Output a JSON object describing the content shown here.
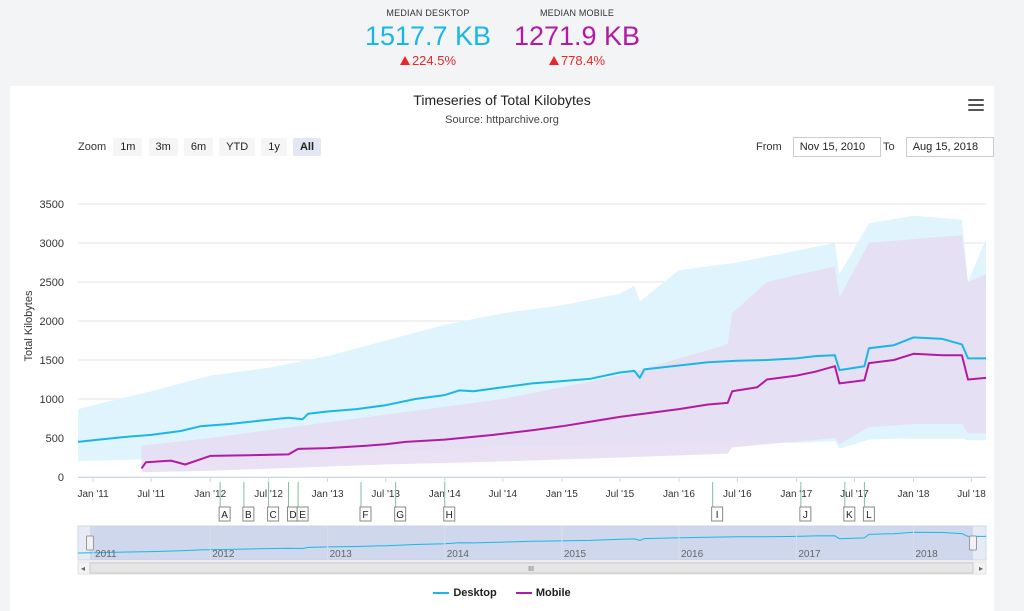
{
  "stats": {
    "desktop": {
      "label": "MEDIAN DESKTOP",
      "value": "1517.7 KB",
      "change": "224.5%"
    },
    "mobile": {
      "label": "MEDIAN MOBILE",
      "value": "1271.9 KB",
      "change": "778.4%"
    }
  },
  "chart_title": "Timeseries of Total Kilobytes",
  "chart_subtitle": "Source: httparchive.org",
  "zoom": {
    "label": "Zoom",
    "buttons": [
      "1m",
      "3m",
      "6m",
      "YTD",
      "1y",
      "All"
    ],
    "selected": "All"
  },
  "range": {
    "from_label": "From",
    "from_value": "Nov 15, 2010",
    "to_label": "To",
    "to_value": "Aug 15, 2018"
  },
  "navigator": {
    "years": [
      "2011",
      "2012",
      "2013",
      "2014",
      "2015",
      "2016",
      "2017",
      "2018"
    ],
    "scroll_grip": "III"
  },
  "colors": {
    "desktop": "#1ab7e6",
    "mobile": "#b31aa3",
    "desktop_band": "#dff4fc",
    "mobile_band": "#e8dcf2",
    "increase": "#e8262b"
  },
  "chart_data": {
    "type": "line",
    "ylabel": "Total Kilobytes",
    "ylim": [
      0,
      3500
    ],
    "yticks": [
      "0",
      "500",
      "1000",
      "1500",
      "2000",
      "2500",
      "3000",
      "3500"
    ],
    "xlim": [
      "2010-11-15",
      "2018-08-15"
    ],
    "xticks": [
      {
        "label": "Jan '11",
        "date": "2011-01-01"
      },
      {
        "label": "Jul '11",
        "date": "2011-07-01"
      },
      {
        "label": "Jan '12",
        "date": "2012-01-01"
      },
      {
        "label": "Jul '12",
        "date": "2012-07-01"
      },
      {
        "label": "Jan '13",
        "date": "2013-01-01"
      },
      {
        "label": "Jul '13",
        "date": "2013-07-01"
      },
      {
        "label": "Jan '14",
        "date": "2014-01-01"
      },
      {
        "label": "Jul '14",
        "date": "2014-07-01"
      },
      {
        "label": "Jan '15",
        "date": "2015-01-01"
      },
      {
        "label": "Jul '15",
        "date": "2015-07-01"
      },
      {
        "label": "Jan '16",
        "date": "2016-01-01"
      },
      {
        "label": "Jul '16",
        "date": "2016-07-01"
      },
      {
        "label": "Jan '17",
        "date": "2017-01-01"
      },
      {
        "label": "Jul '17",
        "date": "2017-07-01"
      },
      {
        "label": "Jan '18",
        "date": "2018-01-01"
      },
      {
        "label": "Jul '18",
        "date": "2018-07-01"
      }
    ],
    "grid": true,
    "legend_position": "bottom-center",
    "series": [
      {
        "name": "Desktop",
        "color": "#1ab7e6",
        "points": [
          [
            "2010-11-15",
            450
          ],
          [
            "2011-01-01",
            470
          ],
          [
            "2011-04-01",
            510
          ],
          [
            "2011-07-01",
            540
          ],
          [
            "2011-10-01",
            590
          ],
          [
            "2011-12-01",
            650
          ],
          [
            "2012-03-01",
            680
          ],
          [
            "2012-06-01",
            720
          ],
          [
            "2012-09-01",
            760
          ],
          [
            "2012-10-15",
            740
          ],
          [
            "2012-11-01",
            810
          ],
          [
            "2013-01-01",
            840
          ],
          [
            "2013-04-01",
            870
          ],
          [
            "2013-07-01",
            920
          ],
          [
            "2013-10-01",
            1000
          ],
          [
            "2014-01-01",
            1050
          ],
          [
            "2014-02-15",
            1110
          ],
          [
            "2014-04-01",
            1100
          ],
          [
            "2014-07-01",
            1150
          ],
          [
            "2014-10-01",
            1200
          ],
          [
            "2015-01-01",
            1230
          ],
          [
            "2015-04-01",
            1260
          ],
          [
            "2015-07-01",
            1340
          ],
          [
            "2015-08-15",
            1360
          ],
          [
            "2015-09-01",
            1270
          ],
          [
            "2015-09-15",
            1380
          ],
          [
            "2016-01-01",
            1430
          ],
          [
            "2016-04-01",
            1470
          ],
          [
            "2016-07-01",
            1490
          ],
          [
            "2016-10-01",
            1500
          ],
          [
            "2017-01-01",
            1520
          ],
          [
            "2017-03-01",
            1550
          ],
          [
            "2017-05-01",
            1560
          ],
          [
            "2017-05-15",
            1370
          ],
          [
            "2017-08-01",
            1420
          ],
          [
            "2017-08-15",
            1650
          ],
          [
            "2017-11-01",
            1690
          ],
          [
            "2018-01-01",
            1790
          ],
          [
            "2018-04-01",
            1770
          ],
          [
            "2018-06-01",
            1700
          ],
          [
            "2018-06-20",
            1520
          ],
          [
            "2018-08-15",
            1520
          ]
        ]
      },
      {
        "name": "Mobile",
        "color": "#b31aa3",
        "points": [
          [
            "2011-06-01",
            110
          ],
          [
            "2011-06-15",
            190
          ],
          [
            "2011-09-01",
            210
          ],
          [
            "2011-10-15",
            160
          ],
          [
            "2012-01-01",
            270
          ],
          [
            "2012-05-01",
            280
          ],
          [
            "2012-09-01",
            290
          ],
          [
            "2012-10-01",
            360
          ],
          [
            "2013-01-01",
            370
          ],
          [
            "2013-05-01",
            400
          ],
          [
            "2013-07-01",
            420
          ],
          [
            "2013-09-01",
            450
          ],
          [
            "2014-01-01",
            480
          ],
          [
            "2014-06-01",
            540
          ],
          [
            "2014-10-01",
            600
          ],
          [
            "2015-01-01",
            650
          ],
          [
            "2015-04-01",
            710
          ],
          [
            "2015-07-01",
            770
          ],
          [
            "2015-10-01",
            820
          ],
          [
            "2016-01-01",
            870
          ],
          [
            "2016-04-01",
            930
          ],
          [
            "2016-06-01",
            950
          ],
          [
            "2016-06-15",
            1100
          ],
          [
            "2016-09-01",
            1150
          ],
          [
            "2016-10-01",
            1250
          ],
          [
            "2017-01-01",
            1300
          ],
          [
            "2017-03-01",
            1350
          ],
          [
            "2017-05-01",
            1420
          ],
          [
            "2017-05-15",
            1200
          ],
          [
            "2017-08-01",
            1240
          ],
          [
            "2017-08-15",
            1460
          ],
          [
            "2017-11-01",
            1500
          ],
          [
            "2018-01-01",
            1580
          ],
          [
            "2018-04-01",
            1560
          ],
          [
            "2018-06-01",
            1560
          ],
          [
            "2018-06-20",
            1250
          ],
          [
            "2018-08-15",
            1270
          ]
        ]
      }
    ],
    "bands": [
      {
        "series": "Desktop",
        "points": [
          [
            "2010-11-15",
            200,
            870
          ],
          [
            "2011-01-01",
            210,
            920
          ],
          [
            "2011-07-01",
            230,
            1100
          ],
          [
            "2012-01-01",
            260,
            1300
          ],
          [
            "2012-07-01",
            280,
            1400
          ],
          [
            "2013-01-01",
            300,
            1550
          ],
          [
            "2013-07-01",
            330,
            1750
          ],
          [
            "2014-01-01",
            360,
            1950
          ],
          [
            "2014-07-01",
            390,
            2100
          ],
          [
            "2015-01-01",
            400,
            2200
          ],
          [
            "2015-07-01",
            420,
            2350
          ],
          [
            "2015-08-15",
            420,
            2450
          ],
          [
            "2015-09-01",
            420,
            2250
          ],
          [
            "2016-01-01",
            430,
            2650
          ],
          [
            "2016-07-01",
            440,
            2750
          ],
          [
            "2017-01-01",
            440,
            2900
          ],
          [
            "2017-05-01",
            460,
            3000
          ],
          [
            "2017-05-15",
            360,
            2600
          ],
          [
            "2017-08-15",
            480,
            3250
          ],
          [
            "2018-01-01",
            500,
            3350
          ],
          [
            "2018-06-01",
            500,
            3300
          ],
          [
            "2018-06-20",
            470,
            2500
          ],
          [
            "2018-08-15",
            470,
            3050
          ]
        ]
      },
      {
        "series": "Mobile",
        "points": [
          [
            "2011-06-01",
            60,
            400
          ],
          [
            "2012-01-01",
            80,
            500
          ],
          [
            "2012-10-01",
            120,
            650
          ],
          [
            "2013-07-01",
            160,
            800
          ],
          [
            "2014-07-01",
            200,
            1000
          ],
          [
            "2015-07-01",
            250,
            1300
          ],
          [
            "2016-06-01",
            300,
            1700
          ],
          [
            "2016-06-15",
            380,
            2100
          ],
          [
            "2016-10-01",
            420,
            2500
          ],
          [
            "2017-05-01",
            500,
            2700
          ],
          [
            "2017-05-15",
            420,
            2300
          ],
          [
            "2017-08-15",
            640,
            3000
          ],
          [
            "2018-01-01",
            680,
            3050
          ],
          [
            "2018-06-01",
            680,
            3100
          ],
          [
            "2018-06-20",
            560,
            2500
          ],
          [
            "2018-08-15",
            560,
            2600
          ]
        ]
      }
    ],
    "flags": [
      {
        "label": "A",
        "date": "2012-02-01"
      },
      {
        "label": "B",
        "date": "2012-04-15"
      },
      {
        "label": "C",
        "date": "2012-07-01"
      },
      {
        "label": "D",
        "date": "2012-09-01"
      },
      {
        "label": "E",
        "date": "2012-10-01"
      },
      {
        "label": "F",
        "date": "2013-04-15"
      },
      {
        "label": "G",
        "date": "2013-08-01"
      },
      {
        "label": "H",
        "date": "2014-01-01"
      },
      {
        "label": "I",
        "date": "2016-04-15"
      },
      {
        "label": "J",
        "date": "2017-01-15"
      },
      {
        "label": "K",
        "date": "2017-06-01"
      },
      {
        "label": "L",
        "date": "2017-08-01"
      }
    ]
  },
  "legend": {
    "desktop": "Desktop",
    "mobile": "Mobile"
  }
}
